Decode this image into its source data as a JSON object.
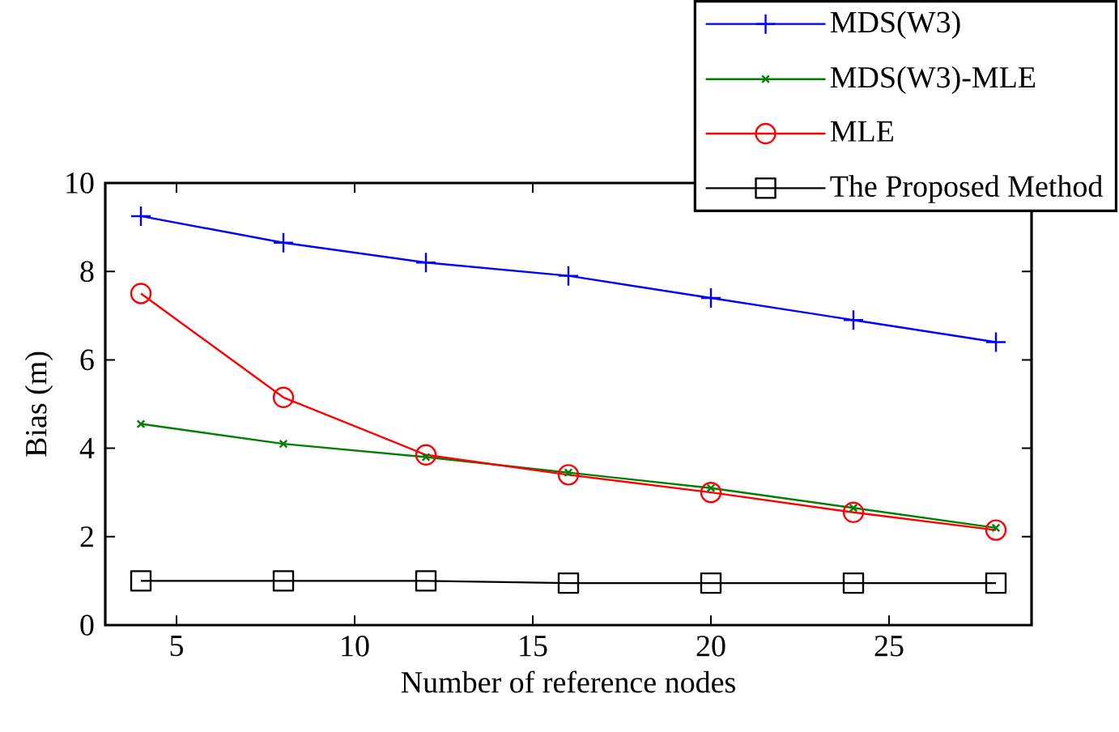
{
  "chart_data": {
    "type": "line",
    "xlabel": "Number of reference nodes",
    "ylabel": "Bias (m)",
    "x": [
      4,
      8,
      12,
      16,
      20,
      24,
      28
    ],
    "xlim": [
      3,
      29
    ],
    "xticks": [
      5,
      10,
      15,
      20,
      25
    ],
    "ylim": [
      0,
      10
    ],
    "yticks": [
      0,
      2,
      4,
      6,
      8,
      10
    ],
    "grid": false,
    "legend": "top right",
    "line_style": "solid",
    "series": [
      {
        "name": "MDS(W3)",
        "color": "#0000ff",
        "marker": "plus",
        "values": [
          9.25,
          8.65,
          8.2,
          7.9,
          7.4,
          6.9,
          6.4
        ]
      },
      {
        "name": "MDS(W3)-MLE",
        "color": "#008000",
        "marker": "cross",
        "values": [
          4.55,
          4.1,
          3.8,
          3.45,
          3.1,
          2.65,
          2.2
        ]
      },
      {
        "name": "MLE",
        "color": "#ff0000",
        "marker": "circle",
        "values": [
          7.5,
          5.15,
          3.85,
          3.4,
          3.0,
          2.55,
          2.15
        ]
      },
      {
        "name": "The Proposed Method",
        "color": "#000000",
        "marker": "square",
        "values": [
          1.0,
          1.0,
          1.0,
          0.95,
          0.95,
          0.95,
          0.95
        ]
      }
    ]
  }
}
